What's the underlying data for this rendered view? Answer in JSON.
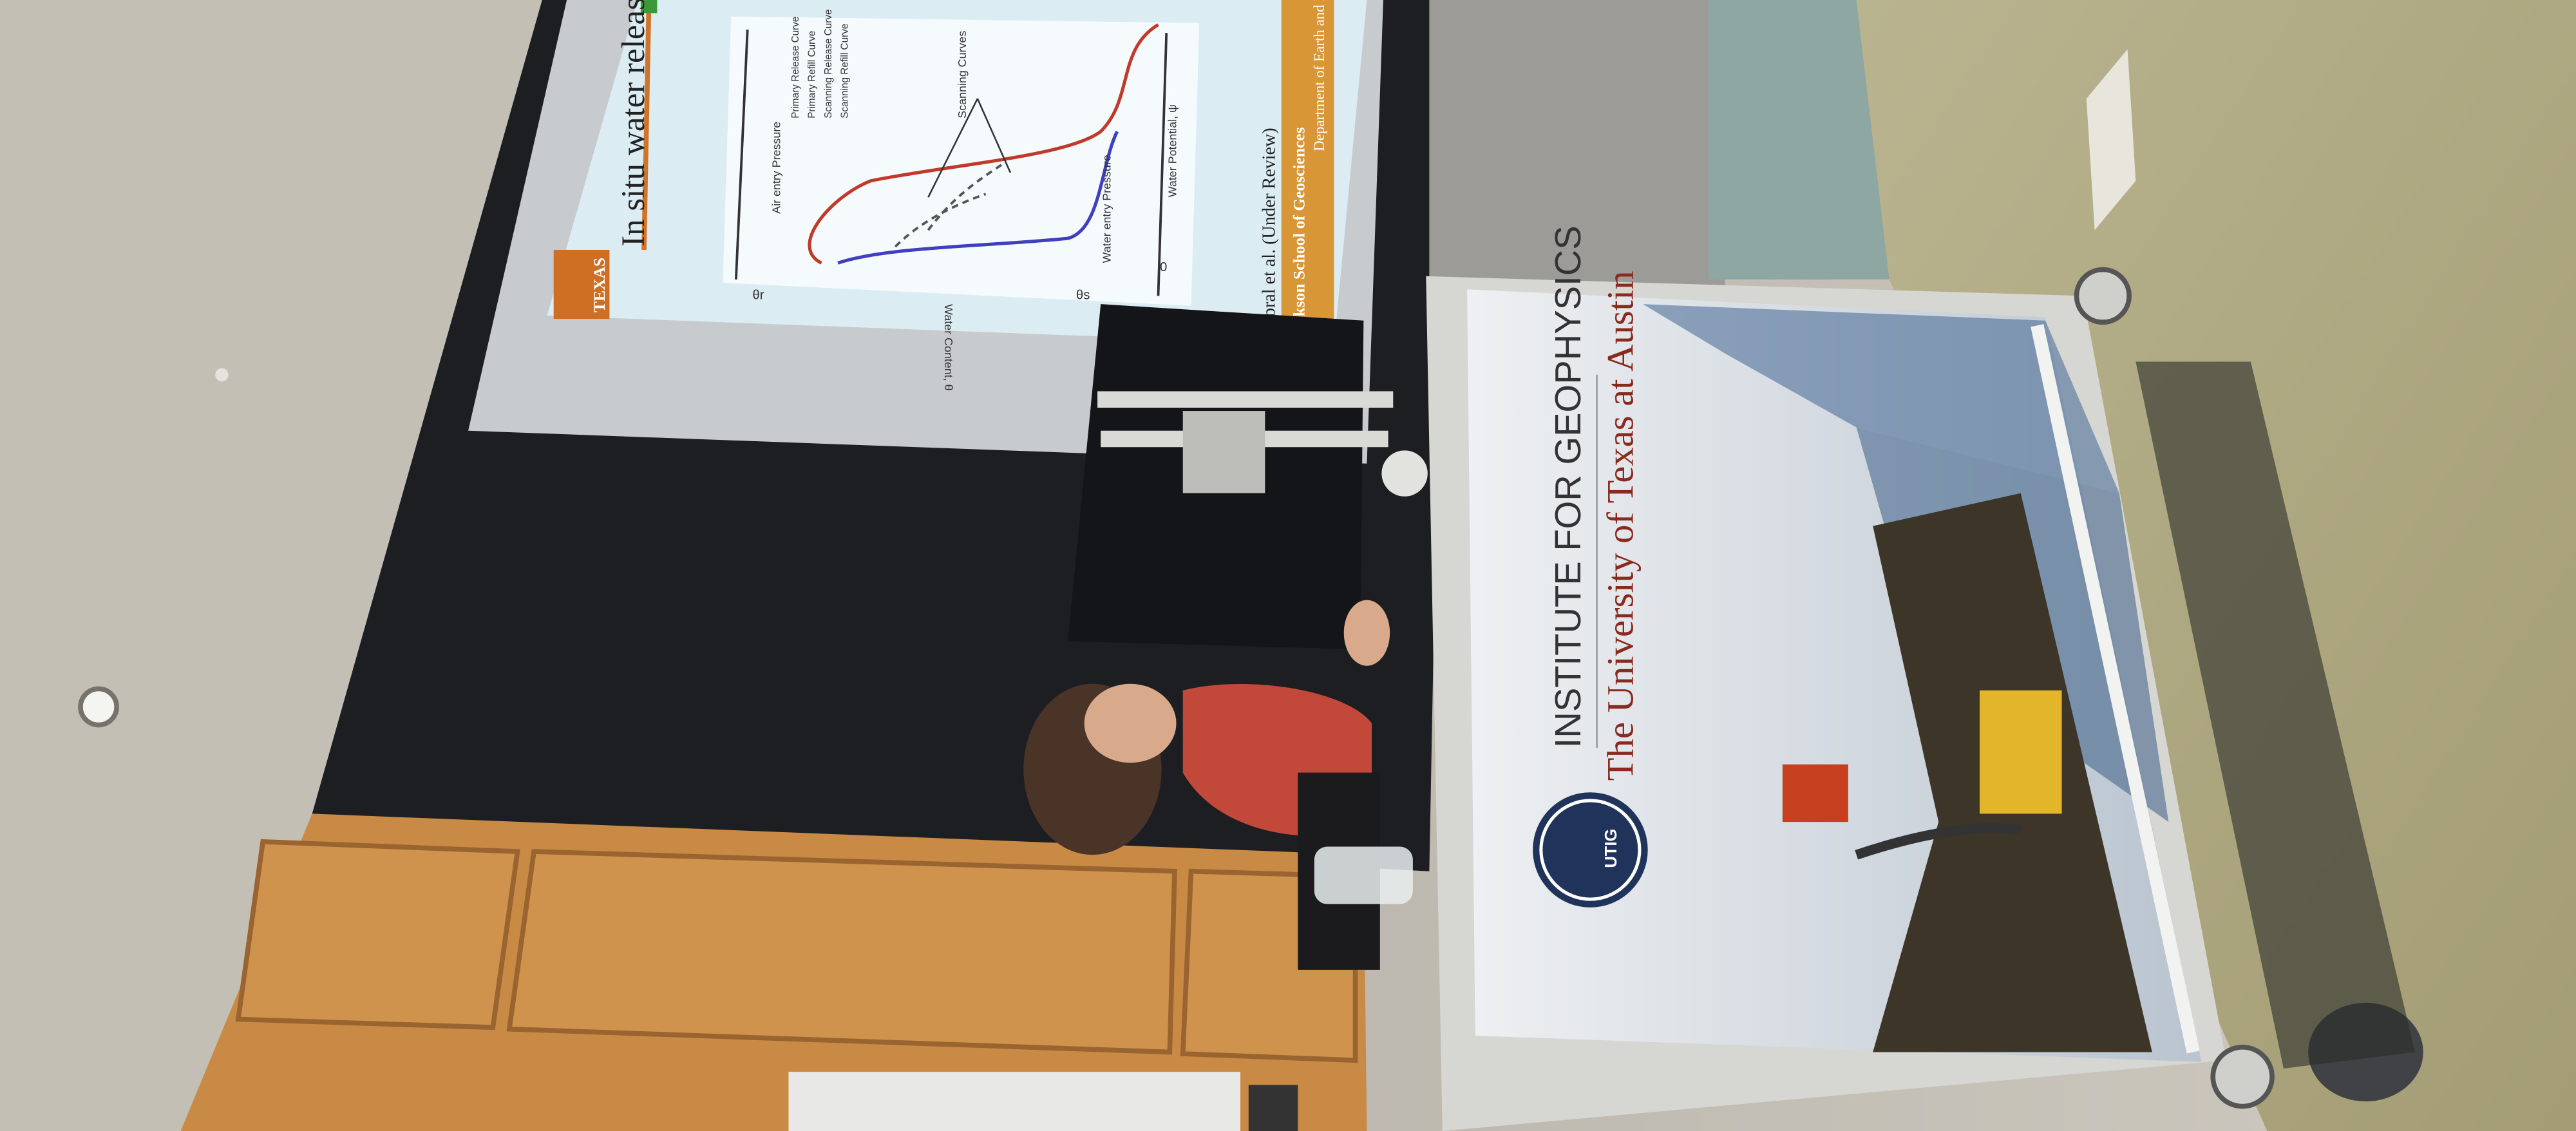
{
  "slide": {
    "title": "In situ water release curves",
    "logo": "TEXAS",
    "legend": [
      "Primary Release Curve",
      "Primary Refill Curve",
      "Scanning Release Curve",
      "Scanning Refill Curve"
    ],
    "labels": {
      "scanning": "Scanning Curves",
      "air_entry": "Air entry Pressure",
      "water_entry": "Water entry Pressure",
      "x_axis": "Water Content, θ",
      "y_axis": "Water Potential, ψ",
      "theta_r": "θr",
      "theta_s": "θs",
      "origin": "0"
    },
    "citation": "Cabral et al. (Under Review)",
    "footer": [
      "Jackson School of Geosciences",
      "Department of Earth and Planet"
    ]
  },
  "podium": {
    "institute": "INSTITUTE FOR GEOPHYSICS",
    "university": "The University of Texas at Austin",
    "logo": "UTIG"
  }
}
